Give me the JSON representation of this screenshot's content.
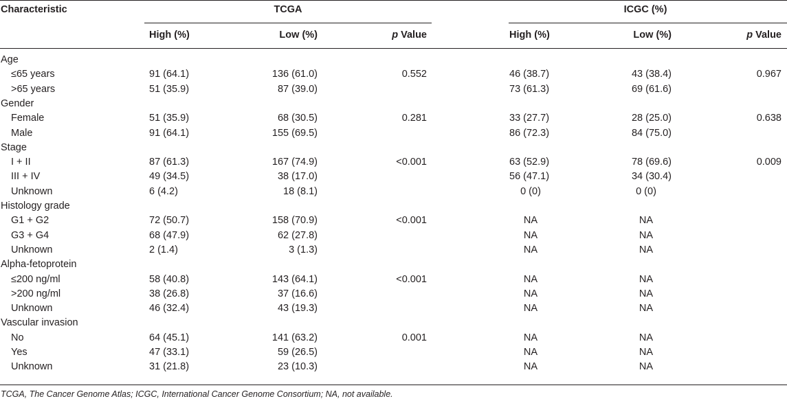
{
  "table": {
    "header": {
      "characteristic": "Characteristic",
      "group_tcga": "TCGA",
      "group_icgc": "ICGC (%)",
      "high": "High (%)",
      "low": "Low (%)",
      "p_letter": "p",
      "p_rest": " Value"
    },
    "rows": [
      {
        "label": "Age",
        "kind": "category"
      },
      {
        "label": "≤65 years",
        "kind": "sub",
        "tcga_high": "91 (64.1)",
        "tcga_low": "136 (61.0)",
        "tcga_p": "0.552",
        "icgc_high": "46 (38.7)",
        "icgc_low": "43 (38.4)",
        "icgc_p": "0.967"
      },
      {
        "label": ">65 years",
        "kind": "sub",
        "tcga_high": "51 (35.9)",
        "tcga_low": "87 (39.0)",
        "tcga_p": "",
        "icgc_high": "73 (61.3)",
        "icgc_low": "69 (61.6)",
        "icgc_p": ""
      },
      {
        "label": "Gender",
        "kind": "category"
      },
      {
        "label": "Female",
        "kind": "sub",
        "tcga_high": "51 (35.9)",
        "tcga_low": "68 (30.5)",
        "tcga_p": "0.281",
        "icgc_high": "33 (27.7)",
        "icgc_low": "28 (25.0)",
        "icgc_p": "0.638"
      },
      {
        "label": "Male",
        "kind": "sub",
        "tcga_high": "91 (64.1)",
        "tcga_low": "155 (69.5)",
        "tcga_p": "",
        "icgc_high": "86 (72.3)",
        "icgc_low": "84 (75.0)",
        "icgc_p": ""
      },
      {
        "label": "Stage",
        "kind": "category"
      },
      {
        "label": "I + II",
        "kind": "sub",
        "tcga_high": "87 (61.3)",
        "tcga_low": "167 (74.9)",
        "tcga_p": "<0.001",
        "icgc_high": "63 (52.9)",
        "icgc_low": "78 (69.6)",
        "icgc_p": "0.009"
      },
      {
        "label": "III + IV",
        "kind": "sub",
        "tcga_high": "49 (34.5)",
        "tcga_low": "38 (17.0)",
        "tcga_p": "",
        "icgc_high": "56 (47.1)",
        "icgc_low": "34 (30.4)",
        "icgc_p": ""
      },
      {
        "label": "Unknown",
        "kind": "sub",
        "tcga_high": "6 (4.2)",
        "tcga_low": "18 (8.1)",
        "tcga_p": "",
        "icgc_high": "0 (0)",
        "icgc_low": "0 (0)",
        "icgc_p": "",
        "icgc_center": true
      },
      {
        "label": "Histology grade",
        "kind": "category"
      },
      {
        "label": "G1 + G2",
        "kind": "sub",
        "tcga_high": "72 (50.7)",
        "tcga_low": "158 (70.9)",
        "tcga_p": "<0.001",
        "icgc_high": "NA",
        "icgc_low": "NA",
        "icgc_p": "",
        "icgc_center": true
      },
      {
        "label": "G3 + G4",
        "kind": "sub",
        "tcga_high": "68 (47.9)",
        "tcga_low": "62 (27.8)",
        "tcga_p": "",
        "icgc_high": "NA",
        "icgc_low": "NA",
        "icgc_p": "",
        "icgc_center": true
      },
      {
        "label": "Unknown",
        "kind": "sub",
        "tcga_high": "2 (1.4)",
        "tcga_low": "3 (1.3)",
        "tcga_p": "",
        "icgc_high": "NA",
        "icgc_low": "NA",
        "icgc_p": "",
        "icgc_center": true
      },
      {
        "label": "Alpha-fetoprotein",
        "kind": "category"
      },
      {
        "label": "≤200 ng/ml",
        "kind": "sub",
        "tcga_high": "58 (40.8)",
        "tcga_low": "143 (64.1)",
        "tcga_p": "<0.001",
        "icgc_high": "NA",
        "icgc_low": "NA",
        "icgc_p": "",
        "icgc_center": true
      },
      {
        "label": ">200 ng/ml",
        "kind": "sub",
        "tcga_high": "38 (26.8)",
        "tcga_low": "37 (16.6)",
        "tcga_p": "",
        "icgc_high": "NA",
        "icgc_low": "NA",
        "icgc_p": "",
        "icgc_center": true
      },
      {
        "label": "Unknown",
        "kind": "sub",
        "tcga_high": "46 (32.4)",
        "tcga_low": "43 (19.3)",
        "tcga_p": "",
        "icgc_high": "NA",
        "icgc_low": "NA",
        "icgc_p": "",
        "icgc_center": true
      },
      {
        "label": "Vascular invasion",
        "kind": "category"
      },
      {
        "label": "No",
        "kind": "sub",
        "tcga_high": "64 (45.1)",
        "tcga_low": "141 (63.2)",
        "tcga_p": "0.001",
        "icgc_high": "NA",
        "icgc_low": "NA",
        "icgc_p": "",
        "icgc_center": true
      },
      {
        "label": "Yes",
        "kind": "sub",
        "tcga_high": "47 (33.1)",
        "tcga_low": "59 (26.5)",
        "tcga_p": "",
        "icgc_high": "NA",
        "icgc_low": "NA",
        "icgc_p": "",
        "icgc_center": true
      },
      {
        "label": "Unknown",
        "kind": "sub",
        "tcga_high": "31 (21.8)",
        "tcga_low": "23 (10.3)",
        "tcga_p": "",
        "icgc_high": "NA",
        "icgc_low": "NA",
        "icgc_p": "",
        "icgc_center": true
      }
    ],
    "footnote": "TCGA, The Cancer Genome Atlas; ICGC, International Cancer Genome Consortium; NA, not available."
  }
}
